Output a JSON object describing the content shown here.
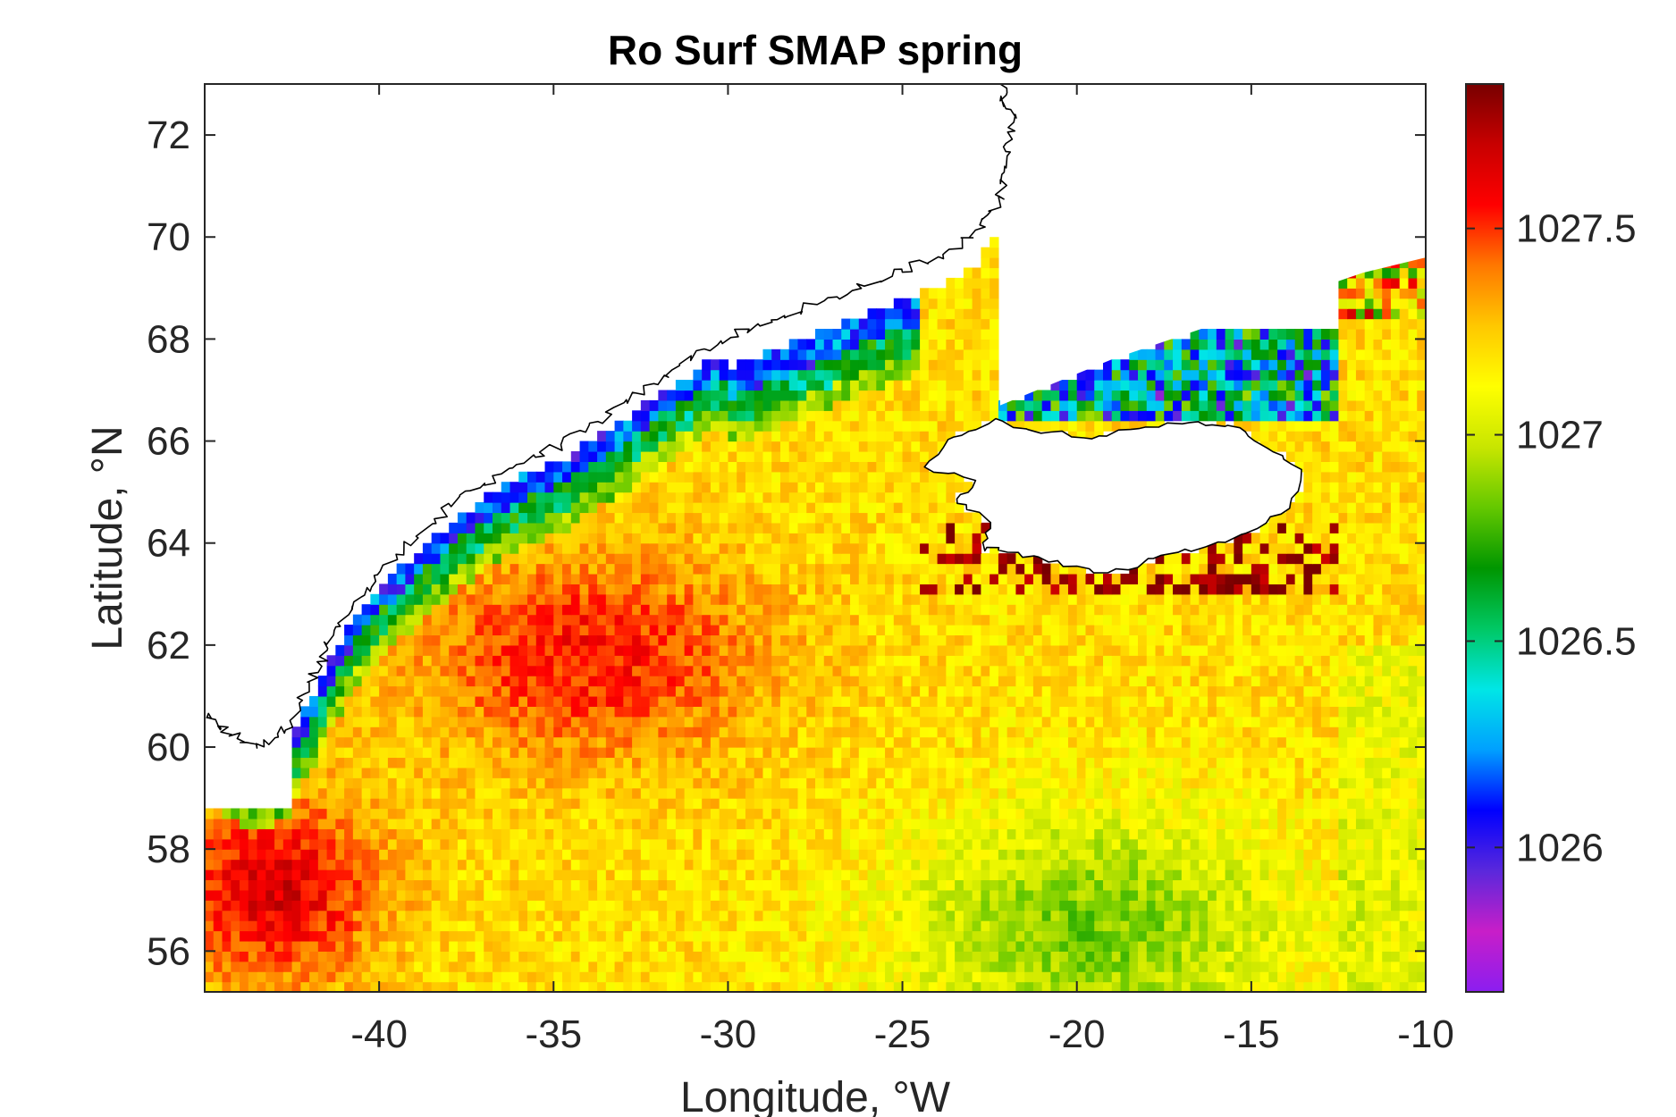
{
  "chart_data": {
    "type": "heatmap",
    "title": "Ro Surf SMAP spring",
    "xlabel": "Longitude, °W",
    "ylabel": "Latitude, °N",
    "xlim": [
      -45,
      -10
    ],
    "ylim": [
      55.2,
      73
    ],
    "x_ticks": [
      -40,
      -35,
      -30,
      -25,
      -20,
      -15,
      -10
    ],
    "y_ticks": [
      56,
      58,
      60,
      62,
      64,
      66,
      68,
      70,
      72
    ],
    "x_tick_labels": [
      "-40",
      "-35",
      "-30",
      "-25",
      "-20",
      "-15",
      "-10"
    ],
    "y_tick_labels": [
      "56",
      "58",
      "60",
      "62",
      "64",
      "66",
      "68",
      "70",
      "72"
    ],
    "colorbar": {
      "range": [
        1025.65,
        1027.85
      ],
      "ticks": [
        1026,
        1026.5,
        1027,
        1027.5
      ],
      "tick_labels": [
        "1026",
        "1026.5",
        "1027",
        "1027.5"
      ],
      "colormap": [
        "#8b1ef0",
        "#c81ec8",
        "#5a28dc",
        "#0000ff",
        "#00a0ff",
        "#00e6e6",
        "#00c864",
        "#009600",
        "#64c800",
        "#c8e600",
        "#ffff00",
        "#ffc800",
        "#ff7800",
        "#ff0000",
        "#c80000",
        "#780000"
      ]
    },
    "description_levels": {
      "shelf_edge_low": 1026.1,
      "south_east_green": 1026.95,
      "irminger_basin_high": 1027.55,
      "interior_yellow": 1027.2
    },
    "grid": false,
    "land_color": "#ffffff"
  }
}
